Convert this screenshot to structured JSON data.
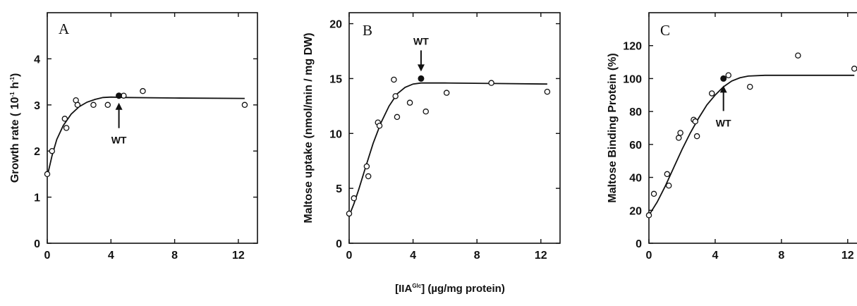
{
  "figure": {
    "xlabel": {
      "pre": "[IIA",
      "sup": "Glc",
      "post": "] (µg/mg protein)"
    }
  },
  "chart_data": [
    {
      "type": "scatter",
      "panel": "A",
      "ylabel": {
        "pre": "Growth rate (  10",
        "sup1": "-1",
        "mid": " h",
        "sup2": "-1",
        "post": ")"
      },
      "xlim": [
        0,
        13.2
      ],
      "ylim": [
        0,
        5
      ],
      "xticks": [
        "0",
        "4",
        "8",
        "12"
      ],
      "xtick_values": [
        0,
        4,
        8,
        12
      ],
      "yticks": [
        "0",
        "1",
        "2",
        "3",
        "4"
      ],
      "ytick_values": [
        0,
        1,
        2,
        3,
        4
      ],
      "open_points": [
        [
          0,
          1.5
        ],
        [
          0.3,
          2.0
        ],
        [
          1.1,
          2.7
        ],
        [
          1.2,
          2.5
        ],
        [
          1.8,
          3.1
        ],
        [
          1.9,
          3.0
        ],
        [
          2.9,
          3.0
        ],
        [
          3.8,
          3.0
        ],
        [
          4.8,
          3.2
        ],
        [
          6.0,
          3.3
        ],
        [
          12.4,
          3.0
        ]
      ],
      "wt_point": [
        4.5,
        3.2
      ],
      "wt_label": "WT",
      "wt_arrow": "up",
      "fit_curve": [
        [
          0,
          1.45
        ],
        [
          0.3,
          1.9
        ],
        [
          0.6,
          2.25
        ],
        [
          1.0,
          2.55
        ],
        [
          1.5,
          2.8
        ],
        [
          2.0,
          2.96
        ],
        [
          2.5,
          3.06
        ],
        [
          3.0,
          3.12
        ],
        [
          3.5,
          3.16
        ],
        [
          4.0,
          3.17
        ],
        [
          5.0,
          3.16
        ],
        [
          8.0,
          3.15
        ],
        [
          12.4,
          3.14
        ]
      ]
    },
    {
      "type": "scatter",
      "panel": "B",
      "ylabel": {
        "text": "Maltose uptake (nmol/min / mg DW)"
      },
      "xlim": [
        0,
        13.2
      ],
      "ylim": [
        0,
        21
      ],
      "xticks": [
        "0",
        "4",
        "8",
        "12"
      ],
      "xtick_values": [
        0,
        4,
        8,
        12
      ],
      "yticks": [
        "0",
        "5",
        "10",
        "15",
        "20"
      ],
      "ytick_values": [
        0,
        5,
        10,
        15,
        20
      ],
      "open_points": [
        [
          0,
          2.7
        ],
        [
          0.3,
          4.1
        ],
        [
          1.1,
          7.0
        ],
        [
          1.2,
          6.1
        ],
        [
          1.8,
          11.0
        ],
        [
          1.9,
          10.7
        ],
        [
          2.8,
          14.9
        ],
        [
          2.9,
          13.4
        ],
        [
          3.0,
          11.5
        ],
        [
          3.8,
          12.8
        ],
        [
          4.8,
          12.0
        ],
        [
          6.1,
          13.7
        ],
        [
          8.9,
          14.6
        ],
        [
          12.4,
          13.8
        ]
      ],
      "wt_point": [
        4.5,
        15.0
      ],
      "wt_label": "WT",
      "wt_arrow": "down",
      "fit_curve": [
        [
          0,
          2.5
        ],
        [
          0.3,
          3.6
        ],
        [
          0.6,
          4.9
        ],
        [
          1.0,
          6.8
        ],
        [
          1.5,
          9.1
        ],
        [
          2.0,
          11.0
        ],
        [
          2.5,
          12.5
        ],
        [
          3.0,
          13.6
        ],
        [
          3.5,
          14.2
        ],
        [
          4.0,
          14.5
        ],
        [
          4.5,
          14.6
        ],
        [
          6.0,
          14.6
        ],
        [
          9.0,
          14.55
        ],
        [
          12.4,
          14.5
        ]
      ]
    },
    {
      "type": "scatter",
      "panel": "C",
      "ylabel": {
        "text": "Maltose Binding Protein (%)"
      },
      "xlim": [
        0,
        13.2
      ],
      "ylim": [
        0,
        140
      ],
      "xticks": [
        "0",
        "4",
        "8",
        "12"
      ],
      "xtick_values": [
        0,
        4,
        8,
        12
      ],
      "yticks": [
        "0",
        "20",
        "40",
        "60",
        "80",
        "100",
        "120"
      ],
      "ytick_values": [
        0,
        20,
        40,
        60,
        80,
        100,
        120
      ],
      "open_points": [
        [
          0,
          17
        ],
        [
          0.3,
          30
        ],
        [
          1.1,
          42
        ],
        [
          1.2,
          35
        ],
        [
          1.8,
          64
        ],
        [
          1.9,
          67
        ],
        [
          2.7,
          75
        ],
        [
          2.8,
          74
        ],
        [
          2.9,
          65
        ],
        [
          3.8,
          91
        ],
        [
          4.8,
          102
        ],
        [
          6.1,
          95
        ],
        [
          9.0,
          114
        ],
        [
          12.4,
          106
        ]
      ],
      "wt_point": [
        4.5,
        100
      ],
      "wt_label": "WT",
      "wt_arrow": "up",
      "fit_curve": [
        [
          0,
          17
        ],
        [
          0.5,
          25
        ],
        [
          1.0,
          35
        ],
        [
          1.5,
          46
        ],
        [
          2.0,
          57
        ],
        [
          2.5,
          67
        ],
        [
          3.0,
          76
        ],
        [
          3.5,
          84
        ],
        [
          4.0,
          90
        ],
        [
          4.5,
          95
        ],
        [
          5.0,
          98.5
        ],
        [
          5.5,
          100.5
        ],
        [
          6.0,
          101.5
        ],
        [
          7.0,
          102
        ],
        [
          10.0,
          102
        ],
        [
          12.4,
          102
        ]
      ]
    }
  ]
}
